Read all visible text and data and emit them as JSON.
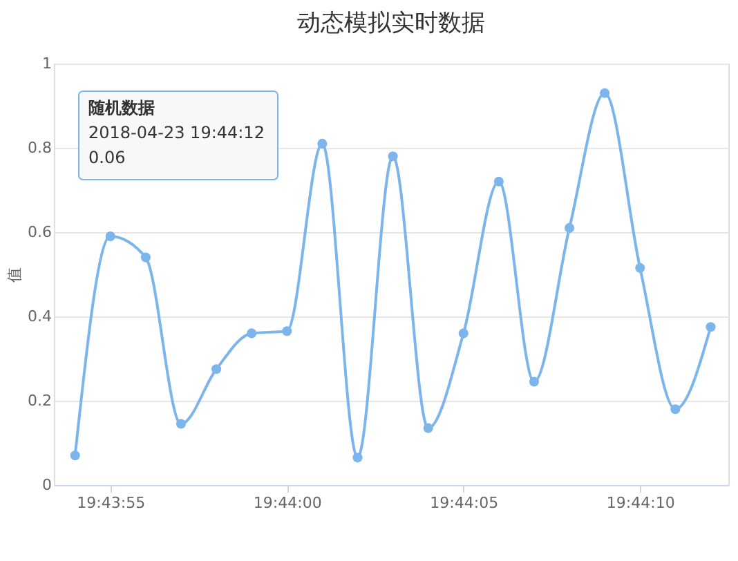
{
  "chart_data": {
    "type": "line",
    "title": "动态模拟实时数据",
    "ylabel": "值",
    "x": [
      "2018-04-23T19:43:54",
      "2018-04-23T19:43:55",
      "2018-04-23T19:43:56",
      "2018-04-23T19:43:57",
      "2018-04-23T19:43:58",
      "2018-04-23T19:43:59",
      "2018-04-23T19:44:00",
      "2018-04-23T19:44:01",
      "2018-04-23T19:44:02",
      "2018-04-23T19:44:03",
      "2018-04-23T19:44:04",
      "2018-04-23T19:44:05",
      "2018-04-23T19:44:06",
      "2018-04-23T19:44:07",
      "2018-04-23T19:44:08",
      "2018-04-23T19:44:09",
      "2018-04-23T19:44:10",
      "2018-04-23T19:44:11",
      "2018-04-23T19:44:12"
    ],
    "series": [
      {
        "color": "#7cb5ec",
        "values": [
          0.07,
          0.59,
          0.54,
          0.145,
          0.275,
          0.36,
          0.365,
          0.81,
          0.065,
          0.78,
          0.135,
          0.36,
          0.72,
          0.245,
          0.61,
          0.93,
          0.515,
          0.18,
          0.375
        ]
      }
    ],
    "xlim": [
      "2018-04-23T19:43:53.4",
      "2018-04-23T19:44:12.5"
    ],
    "xticks": [
      {
        "value": "2018-04-23T19:43:55",
        "label": "19:43:55"
      },
      {
        "value": "2018-04-23T19:44:00",
        "label": "19:44:00"
      },
      {
        "value": "2018-04-23T19:44:05",
        "label": "19:44:05"
      },
      {
        "value": "2018-04-23T19:44:10",
        "label": "19:44:10"
      }
    ],
    "ylim": [
      0,
      1
    ],
    "yticks": [
      0,
      0.2,
      0.4,
      0.6,
      0.8,
      1
    ],
    "grid": "y",
    "marker": "circle",
    "line_style": "solid",
    "annotations": [
      "随机数据",
      "2018-04-23 19:44:12",
      "0.06"
    ]
  }
}
